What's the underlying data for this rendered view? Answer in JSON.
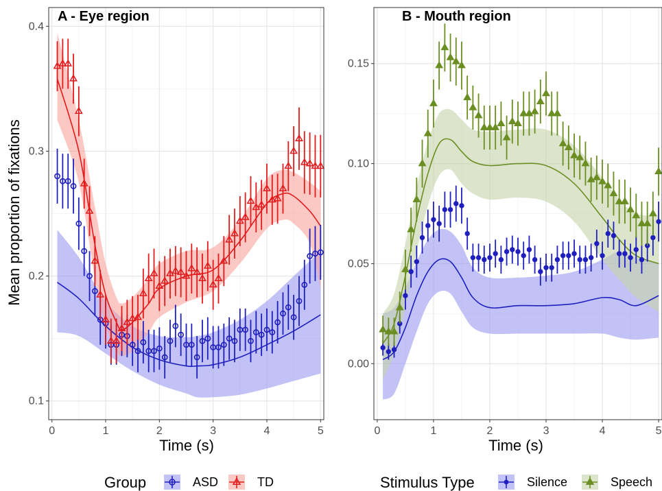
{
  "chart_data": [
    {
      "type": "scatter",
      "panel": "A",
      "title": "A - Eye region",
      "xlabel": "Time (s)",
      "ylabel": "Mean proportion of fixations",
      "xlim": [
        -0.06,
        5.06
      ],
      "ylim": [
        0.085,
        0.415
      ],
      "xticks": [
        0,
        1,
        2,
        3,
        4,
        5
      ],
      "yticks": [
        0.1,
        0.2,
        0.3,
        0.4
      ],
      "ytick_labels": [
        "0.1",
        "0.2",
        "0.3",
        "0.4"
      ],
      "grid": true,
      "legend_title": "Group",
      "legend_placement": "bottom",
      "series": [
        {
          "name": "ASD",
          "color": "#1f1fbf",
          "band_color": "#9999f2",
          "marker": "circle",
          "x": [
            0.1,
            0.2,
            0.3,
            0.4,
            0.5,
            0.6,
            0.7,
            0.8,
            0.9,
            1.0,
            1.1,
            1.2,
            1.3,
            1.4,
            1.5,
            1.6,
            1.7,
            1.8,
            1.9,
            2.0,
            2.1,
            2.2,
            2.3,
            2.4,
            2.5,
            2.6,
            2.7,
            2.8,
            2.9,
            3.0,
            3.1,
            3.2,
            3.3,
            3.4,
            3.5,
            3.6,
            3.7,
            3.8,
            3.9,
            4.0,
            4.1,
            4.2,
            4.3,
            4.4,
            4.5,
            4.6,
            4.7,
            4.8,
            4.9,
            5.0
          ],
          "y": [
            0.28,
            0.276,
            0.276,
            0.272,
            0.242,
            0.22,
            0.2,
            0.188,
            0.165,
            0.162,
            0.145,
            0.145,
            0.153,
            0.152,
            0.145,
            0.14,
            0.147,
            0.14,
            0.14,
            0.142,
            0.135,
            0.148,
            0.16,
            0.153,
            0.145,
            0.145,
            0.135,
            0.148,
            0.15,
            0.143,
            0.143,
            0.145,
            0.15,
            0.148,
            0.157,
            0.157,
            0.148,
            0.155,
            0.153,
            0.157,
            0.155,
            0.163,
            0.17,
            0.175,
            0.167,
            0.18,
            0.193,
            0.216,
            0.218,
            0.219
          ],
          "err": [
            0.022,
            0.022,
            0.022,
            0.022,
            0.021,
            0.02,
            0.02,
            0.02,
            0.02,
            0.02,
            0.016,
            0.016,
            0.017,
            0.017,
            0.017,
            0.017,
            0.017,
            0.017,
            0.017,
            0.017,
            0.017,
            0.017,
            0.017,
            0.017,
            0.017,
            0.017,
            0.017,
            0.017,
            0.017,
            0.017,
            0.017,
            0.017,
            0.017,
            0.017,
            0.017,
            0.017,
            0.017,
            0.017,
            0.017,
            0.017,
            0.017,
            0.017,
            0.017,
            0.018,
            0.018,
            0.02,
            0.02,
            0.022,
            0.022,
            0.022
          ],
          "trend_x": [
            0.1,
            0.5,
            1.0,
            1.5,
            2.0,
            2.5,
            2.7,
            3.0,
            3.5,
            4.0,
            4.5,
            5.0
          ],
          "trend_y": [
            0.195,
            0.182,
            0.16,
            0.143,
            0.133,
            0.128,
            0.128,
            0.129,
            0.135,
            0.145,
            0.156,
            0.169
          ],
          "band_upper": [
            0.237,
            0.215,
            0.18,
            0.16,
            0.152,
            0.151,
            0.152,
            0.155,
            0.165,
            0.18,
            0.2,
            0.22
          ],
          "band_lower": [
            0.155,
            0.152,
            0.138,
            0.124,
            0.113,
            0.106,
            0.103,
            0.103,
            0.105,
            0.11,
            0.116,
            0.122
          ]
        },
        {
          "name": "TD",
          "color": "#e31a1c",
          "band_color": "#f8a39c",
          "marker": "triangle",
          "x": [
            0.1,
            0.2,
            0.3,
            0.4,
            0.5,
            0.6,
            0.7,
            0.8,
            0.9,
            1.0,
            1.1,
            1.2,
            1.3,
            1.4,
            1.5,
            1.6,
            1.7,
            1.8,
            1.9,
            2.0,
            2.1,
            2.2,
            2.3,
            2.4,
            2.5,
            2.6,
            2.7,
            2.8,
            2.9,
            3.0,
            3.1,
            3.2,
            3.3,
            3.4,
            3.5,
            3.6,
            3.7,
            3.8,
            3.9,
            4.0,
            4.1,
            4.2,
            4.3,
            4.4,
            4.5,
            4.6,
            4.7,
            4.8,
            4.9,
            5.0
          ],
          "y": [
            0.368,
            0.37,
            0.37,
            0.358,
            0.332,
            0.274,
            0.252,
            0.212,
            0.185,
            0.165,
            0.148,
            0.148,
            0.158,
            0.163,
            0.166,
            0.167,
            0.186,
            0.198,
            0.202,
            0.192,
            0.196,
            0.202,
            0.204,
            0.203,
            0.2,
            0.206,
            0.203,
            0.198,
            0.208,
            0.193,
            0.198,
            0.212,
            0.229,
            0.234,
            0.244,
            0.247,
            0.26,
            0.255,
            0.257,
            0.27,
            0.261,
            0.262,
            0.27,
            0.288,
            0.3,
            0.31,
            0.291,
            0.29,
            0.288,
            0.288
          ],
          "err": [
            0.02,
            0.02,
            0.02,
            0.02,
            0.02,
            0.02,
            0.02,
            0.02,
            0.02,
            0.02,
            0.018,
            0.018,
            0.018,
            0.018,
            0.018,
            0.018,
            0.02,
            0.02,
            0.02,
            0.02,
            0.02,
            0.02,
            0.02,
            0.02,
            0.02,
            0.02,
            0.02,
            0.02,
            0.02,
            0.02,
            0.02,
            0.02,
            0.02,
            0.02,
            0.02,
            0.02,
            0.02,
            0.02,
            0.02,
            0.02,
            0.02,
            0.02,
            0.02,
            0.02,
            0.02,
            0.025,
            0.025,
            0.025,
            0.025,
            0.025
          ],
          "trend_x": [
            0.1,
            0.5,
            0.8,
            1.0,
            1.2,
            1.3,
            1.5,
            1.8,
            2.0,
            2.5,
            3.0,
            3.5,
            4.0,
            4.3,
            4.5,
            4.8,
            5.0
          ],
          "trend_y": [
            0.358,
            0.3,
            0.225,
            0.185,
            0.163,
            0.157,
            0.163,
            0.178,
            0.19,
            0.2,
            0.205,
            0.228,
            0.258,
            0.266,
            0.264,
            0.252,
            0.24
          ],
          "band_upper": [
            0.395,
            0.325,
            0.255,
            0.21,
            0.183,
            0.178,
            0.183,
            0.198,
            0.21,
            0.22,
            0.223,
            0.245,
            0.278,
            0.285,
            0.283,
            0.275,
            0.268
          ],
          "band_lower": [
            0.325,
            0.275,
            0.198,
            0.16,
            0.14,
            0.136,
            0.14,
            0.155,
            0.167,
            0.179,
            0.188,
            0.21,
            0.238,
            0.245,
            0.242,
            0.226,
            0.19
          ]
        }
      ]
    },
    {
      "type": "scatter",
      "panel": "B",
      "title": "B - Mouth region",
      "xlabel": "Time (s)",
      "ylabel": "",
      "xlim": [
        -0.06,
        5.06
      ],
      "ylim": [
        -0.028,
        0.178
      ],
      "xticks": [
        0,
        1,
        2,
        3,
        4,
        5
      ],
      "yticks": [
        0.0,
        0.05,
        0.1,
        0.15
      ],
      "ytick_labels": [
        "0.00",
        "0.05",
        "0.10",
        "0.15"
      ],
      "grid": true,
      "legend_title": "Stimulus Type",
      "legend_placement": "bottom",
      "series": [
        {
          "name": "Silence",
          "color": "#1f1fbf",
          "band_color": "#9999f2",
          "marker": "point",
          "x": [
            0.1,
            0.2,
            0.3,
            0.4,
            0.5,
            0.6,
            0.7,
            0.8,
            0.9,
            1.0,
            1.1,
            1.2,
            1.3,
            1.4,
            1.5,
            1.6,
            1.7,
            1.8,
            1.9,
            2.0,
            2.1,
            2.2,
            2.3,
            2.4,
            2.5,
            2.6,
            2.7,
            2.8,
            2.9,
            3.0,
            3.1,
            3.2,
            3.3,
            3.4,
            3.5,
            3.6,
            3.7,
            3.8,
            3.9,
            4.0,
            4.1,
            4.2,
            4.3,
            4.4,
            4.5,
            4.6,
            4.7,
            4.8,
            4.9,
            5.0
          ],
          "y": [
            0.008,
            0.006,
            0.007,
            0.02,
            0.034,
            0.046,
            0.051,
            0.063,
            0.069,
            0.072,
            0.07,
            0.077,
            0.077,
            0.08,
            0.079,
            0.065,
            0.053,
            0.053,
            0.052,
            0.053,
            0.055,
            0.052,
            0.056,
            0.057,
            0.056,
            0.054,
            0.057,
            0.052,
            0.046,
            0.048,
            0.048,
            0.052,
            0.054,
            0.054,
            0.055,
            0.052,
            0.052,
            0.053,
            0.06,
            0.054,
            0.065,
            0.064,
            0.055,
            0.055,
            0.053,
            0.057,
            0.052,
            0.059,
            0.063,
            0.071
          ],
          "err": [
            0.004,
            0.004,
            0.004,
            0.005,
            0.007,
            0.008,
            0.008,
            0.008,
            0.008,
            0.009,
            0.009,
            0.009,
            0.009,
            0.009,
            0.009,
            0.008,
            0.007,
            0.007,
            0.007,
            0.007,
            0.007,
            0.007,
            0.007,
            0.007,
            0.007,
            0.007,
            0.007,
            0.007,
            0.007,
            0.007,
            0.007,
            0.007,
            0.007,
            0.007,
            0.007,
            0.007,
            0.007,
            0.007,
            0.007,
            0.007,
            0.007,
            0.007,
            0.007,
            0.007,
            0.007,
            0.007,
            0.007,
            0.008,
            0.009,
            0.01
          ],
          "trend_x": [
            0.1,
            0.3,
            0.5,
            0.7,
            0.9,
            1.1,
            1.3,
            1.5,
            1.7,
            2.0,
            2.5,
            3.0,
            3.5,
            4.0,
            4.3,
            4.6,
            5.0
          ],
          "trend_y": [
            0.002,
            0.006,
            0.018,
            0.034,
            0.046,
            0.052,
            0.051,
            0.043,
            0.033,
            0.028,
            0.029,
            0.029,
            0.03,
            0.033,
            0.032,
            0.029,
            0.034
          ],
          "band_upper": [
            0.025,
            0.028,
            0.038,
            0.051,
            0.062,
            0.067,
            0.066,
            0.059,
            0.048,
            0.043,
            0.043,
            0.044,
            0.046,
            0.052,
            0.056,
            0.053,
            0.05
          ],
          "band_lower": [
            -0.018,
            -0.015,
            0.0,
            0.016,
            0.03,
            0.036,
            0.035,
            0.026,
            0.018,
            0.015,
            0.015,
            0.015,
            0.015,
            0.015,
            0.013,
            0.012,
            0.013
          ]
        },
        {
          "name": "Speech",
          "color": "#6b8e23",
          "band_color": "#c5d3a8",
          "marker": "triangle",
          "x": [
            0.1,
            0.2,
            0.3,
            0.4,
            0.5,
            0.6,
            0.7,
            0.8,
            0.9,
            1.0,
            1.1,
            1.2,
            1.3,
            1.4,
            1.5,
            1.6,
            1.7,
            1.8,
            1.9,
            2.0,
            2.1,
            2.2,
            2.3,
            2.4,
            2.5,
            2.6,
            2.7,
            2.8,
            2.9,
            3.0,
            3.1,
            3.2,
            3.3,
            3.4,
            3.5,
            3.6,
            3.7,
            3.8,
            3.9,
            4.0,
            4.1,
            4.2,
            4.3,
            4.4,
            4.5,
            4.6,
            4.7,
            4.8,
            4.9,
            5.0
          ],
          "y": [
            0.017,
            0.016,
            0.016,
            0.028,
            0.047,
            0.067,
            0.082,
            0.1,
            0.115,
            0.13,
            0.149,
            0.158,
            0.153,
            0.151,
            0.149,
            0.133,
            0.128,
            0.124,
            0.118,
            0.118,
            0.118,
            0.12,
            0.113,
            0.121,
            0.12,
            0.125,
            0.125,
            0.126,
            0.131,
            0.135,
            0.125,
            0.125,
            0.11,
            0.108,
            0.104,
            0.103,
            0.1,
            0.092,
            0.093,
            0.091,
            0.089,
            0.085,
            0.081,
            0.081,
            0.077,
            0.074,
            0.07,
            0.07,
            0.075,
            0.096
          ],
          "err": [
            0.007,
            0.007,
            0.007,
            0.008,
            0.01,
            0.011,
            0.011,
            0.012,
            0.012,
            0.012,
            0.012,
            0.012,
            0.012,
            0.012,
            0.012,
            0.011,
            0.011,
            0.011,
            0.011,
            0.011,
            0.011,
            0.011,
            0.011,
            0.011,
            0.011,
            0.011,
            0.011,
            0.011,
            0.011,
            0.011,
            0.011,
            0.011,
            0.011,
            0.011,
            0.011,
            0.011,
            0.011,
            0.011,
            0.011,
            0.011,
            0.011,
            0.011,
            0.011,
            0.011,
            0.011,
            0.011,
            0.011,
            0.011,
            0.011,
            0.012
          ],
          "trend_x": [
            0.1,
            0.3,
            0.5,
            0.7,
            0.9,
            1.1,
            1.3,
            1.5,
            1.7,
            2.0,
            2.5,
            3.0,
            3.5,
            4.0,
            4.3,
            4.6,
            5.0
          ],
          "trend_y": [
            0.01,
            0.02,
            0.044,
            0.072,
            0.095,
            0.11,
            0.112,
            0.106,
            0.101,
            0.099,
            0.1,
            0.099,
            0.09,
            0.073,
            0.062,
            0.054,
            0.05
          ],
          "band_upper": [
            0.025,
            0.035,
            0.06,
            0.088,
            0.111,
            0.125,
            0.127,
            0.122,
            0.117,
            0.116,
            0.117,
            0.117,
            0.109,
            0.093,
            0.082,
            0.075,
            0.074
          ],
          "band_lower": [
            -0.008,
            0.005,
            0.028,
            0.056,
            0.079,
            0.094,
            0.097,
            0.09,
            0.085,
            0.082,
            0.083,
            0.081,
            0.071,
            0.052,
            0.042,
            0.033,
            0.026
          ]
        }
      ]
    }
  ]
}
